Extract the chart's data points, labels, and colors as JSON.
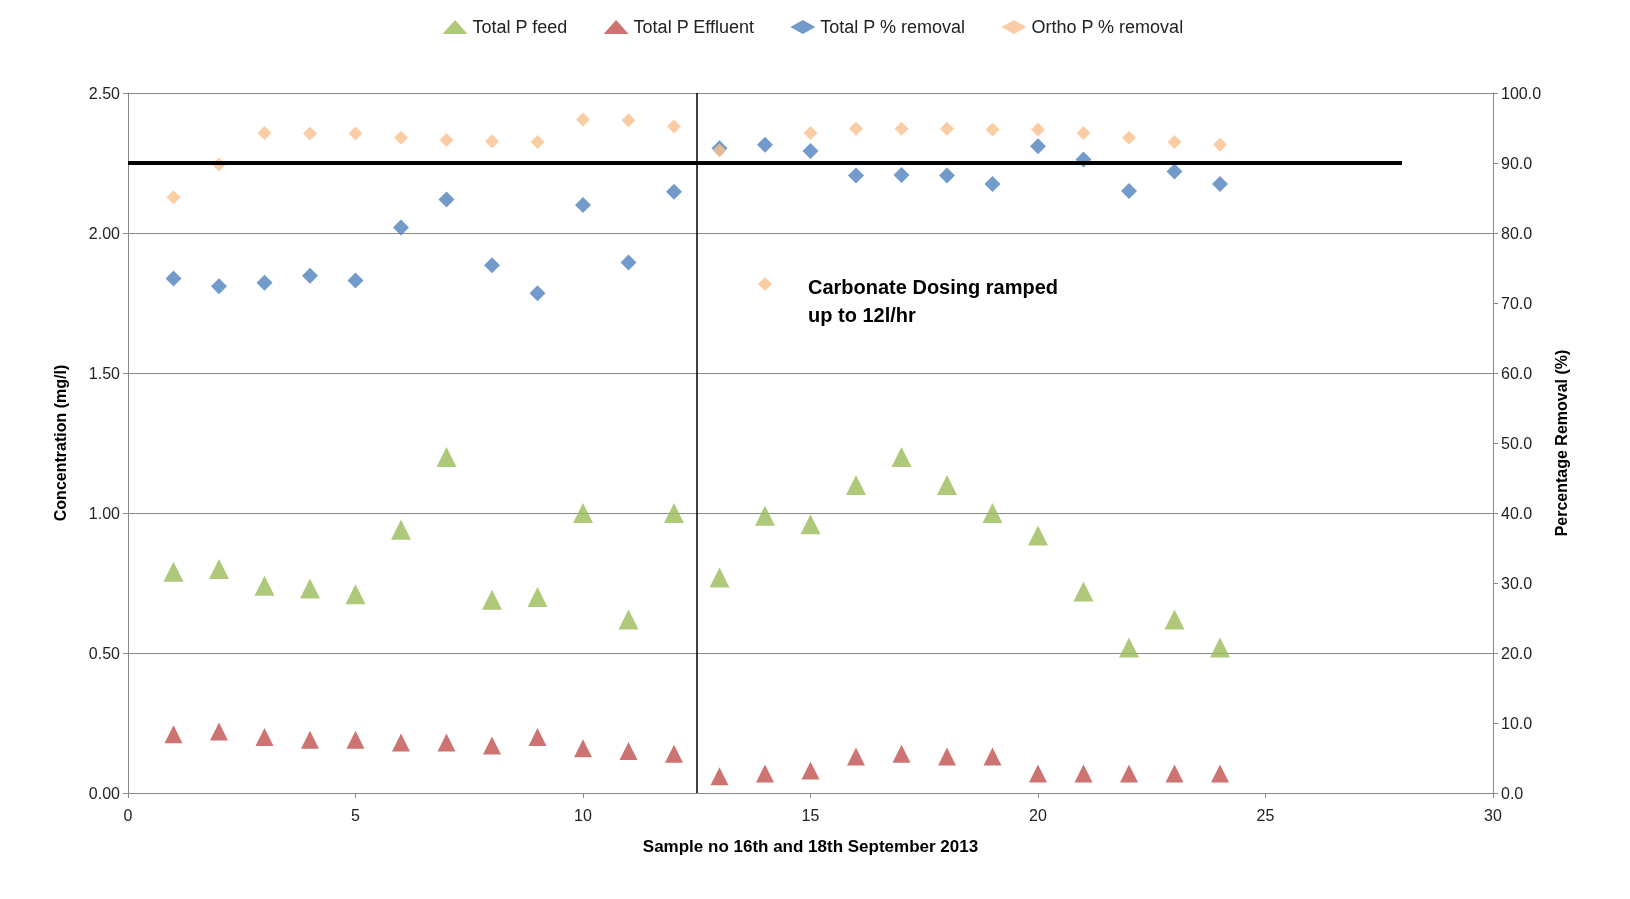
{
  "chart_data": {
    "type": "scatter",
    "xlabel": "Sample no 16th and 18th September 2013",
    "ylabel": "Concentration (mg/l)",
    "y2label": "Percentage Removal (%)",
    "x": [
      1,
      2,
      3,
      4,
      5,
      6,
      7,
      8,
      9,
      10,
      11,
      12,
      13,
      14,
      15,
      16,
      17,
      18,
      19,
      20,
      21,
      22,
      23,
      24
    ],
    "series": [
      {
        "name": "Total P feed",
        "color": "#9bbb59",
        "marker": "triangle",
        "values": [
          0.79,
          0.8,
          0.74,
          0.73,
          0.71,
          0.94,
          1.2,
          0.69,
          0.7,
          1.0,
          0.62,
          1.0,
          0.77,
          0.99,
          0.96,
          1.1,
          1.2,
          1.1,
          1.0,
          0.92,
          0.72,
          0.52,
          0.62,
          0.52
        ]
      },
      {
        "name": "Total P Effluent",
        "color": "#c0504d",
        "marker": "triangle",
        "values": [
          0.21,
          0.22,
          0.2,
          0.19,
          0.19,
          0.18,
          0.18,
          0.17,
          0.2,
          0.16,
          0.15,
          0.14,
          0.06,
          0.07,
          0.08,
          0.13,
          0.14,
          0.13,
          0.13,
          0.07,
          0.07,
          0.07,
          0.07,
          0.07
        ]
      },
      {
        "name": "Total P % removal",
        "color": "#4f81bd",
        "marker": "diamond",
        "axis": "y2",
        "values": [
          73.5,
          72.4,
          72.9,
          73.9,
          73.2,
          80.8,
          84.8,
          75.4,
          71.4,
          84.0,
          75.8,
          85.9,
          92.1,
          92.6,
          91.7,
          88.2,
          88.3,
          88.2,
          87.0,
          92.4,
          90.5,
          86.0,
          88.8,
          87.0
        ]
      },
      {
        "name": "Ortho P % removal",
        "color": "#f9c08f",
        "marker": "diamond",
        "axis": "y2",
        "values": [
          85.1,
          89.8,
          94.3,
          94.2,
          94.2,
          93.6,
          93.3,
          93.1,
          93.0,
          96.2,
          96.1,
          95.2,
          91.8,
          72.7,
          94.3,
          94.9,
          94.9,
          94.9,
          94.8,
          94.8,
          94.3,
          93.6,
          93.0,
          92.6
        ]
      },
      {
        "type": "line",
        "color": "#000000",
        "marker": "none",
        "axis": "y2",
        "x": [
          0,
          28
        ],
        "values": [
          90.0,
          90.0
        ]
      }
    ],
    "ref_lines": [
      {
        "axis": "x",
        "value": 12.5,
        "color": "#000000"
      }
    ],
    "annotations": [
      "Carbonate Dosing ramped\nup to 12l/hr"
    ],
    "xlim": [
      0,
      30
    ],
    "xticks": [
      0,
      5,
      10,
      15,
      20,
      25,
      30
    ],
    "ylim": [
      0,
      2.5
    ],
    "yticks": [
      {
        "value": 0,
        "label": "0.00"
      },
      {
        "value": 0.5,
        "label": "0.50"
      },
      {
        "value": 1,
        "label": "1.00"
      },
      {
        "value": 1.5,
        "label": "1.50"
      },
      {
        "value": 2,
        "label": "2.00"
      },
      {
        "value": 2.5,
        "label": "2.50"
      }
    ],
    "y2lim": [
      0,
      100
    ],
    "y2ticks": [
      {
        "value": 0,
        "label": "0.0"
      },
      {
        "value": 10,
        "label": "10.0"
      },
      {
        "value": 20,
        "label": "20.0"
      },
      {
        "value": 30,
        "label": "30.0"
      },
      {
        "value": 40,
        "label": "40.0"
      },
      {
        "value": 50,
        "label": "50.0"
      },
      {
        "value": 60,
        "label": "60.0"
      },
      {
        "value": 70,
        "label": "70.0"
      },
      {
        "value": 80,
        "label": "80.0"
      },
      {
        "value": 90,
        "label": "90.0"
      },
      {
        "value": 100,
        "label": "100.0"
      }
    ],
    "grid": "y",
    "legend": "top"
  }
}
